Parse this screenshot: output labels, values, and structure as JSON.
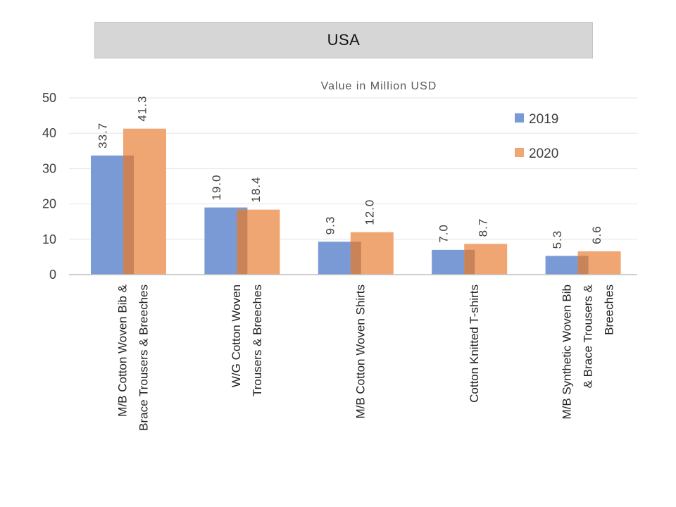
{
  "title": "USA",
  "chart_data": {
    "type": "bar",
    "subtitle": "Value in Million USD",
    "categories": [
      [
        "M/B Cotton  Woven Bib &",
        "Brace Trousers & Breeches"
      ],
      [
        "W/G Cotton Woven",
        "Trousers & Breeches"
      ],
      [
        "M/B Cotton Woven  Shirts"
      ],
      [
        "Cotton Knitted   T-shirts"
      ],
      [
        "M/B Synthetic  Woven Bib",
        "& Brace Trousers &",
        "Breeches"
      ]
    ],
    "series": [
      {
        "name": "2019",
        "values": [
          33.7,
          19.0,
          9.3,
          7.0,
          5.3
        ],
        "labels": [
          "33.7",
          "19.0",
          "9.3",
          "7.0",
          "5.3"
        ],
        "color": "#7a9ad6"
      },
      {
        "name": "2020",
        "values": [
          41.3,
          18.4,
          12.0,
          8.7,
          6.6
        ],
        "labels": [
          "41.3",
          "18.4",
          "12.0",
          "8.7",
          "6.6"
        ],
        "color": "#f0a673"
      }
    ],
    "ylim": [
      0,
      50
    ],
    "yticks": [
      "0",
      "10",
      "20",
      "30",
      "40",
      "50"
    ],
    "grid": true,
    "legend": "top-right"
  }
}
